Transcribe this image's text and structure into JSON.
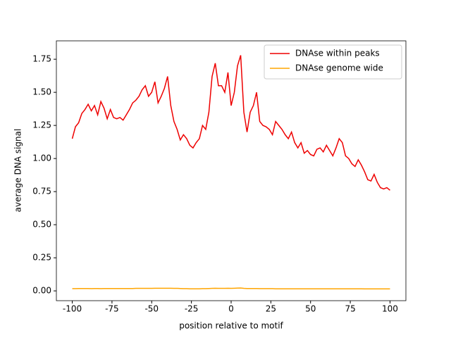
{
  "chart_data": {
    "type": "line",
    "xlabel": "position relative to motif",
    "ylabel": "average DNA signal",
    "x": [
      -100,
      -98,
      -96,
      -94,
      -92,
      -90,
      -88,
      -86,
      -84,
      -82,
      -80,
      -78,
      -76,
      -74,
      -72,
      -70,
      -68,
      -66,
      -64,
      -62,
      -60,
      -58,
      -56,
      -54,
      -52,
      -50,
      -48,
      -46,
      -44,
      -42,
      -40,
      -38,
      -36,
      -34,
      -32,
      -30,
      -28,
      -26,
      -24,
      -22,
      -20,
      -18,
      -16,
      -14,
      -12,
      -10,
      -8,
      -6,
      -4,
      -2,
      0,
      2,
      4,
      6,
      8,
      10,
      12,
      14,
      16,
      18,
      20,
      22,
      24,
      26,
      28,
      30,
      32,
      34,
      36,
      38,
      40,
      42,
      44,
      46,
      48,
      50,
      52,
      54,
      56,
      58,
      60,
      62,
      64,
      66,
      68,
      70,
      72,
      74,
      76,
      78,
      80,
      82,
      84,
      86,
      88,
      90,
      92,
      94,
      96,
      98,
      100
    ],
    "series": [
      {
        "name": "DNAse within peaks",
        "color": "#ee0000",
        "values": [
          1.15,
          1.24,
          1.27,
          1.34,
          1.37,
          1.41,
          1.36,
          1.4,
          1.33,
          1.43,
          1.38,
          1.3,
          1.37,
          1.31,
          1.3,
          1.31,
          1.29,
          1.33,
          1.37,
          1.42,
          1.44,
          1.47,
          1.52,
          1.55,
          1.47,
          1.5,
          1.58,
          1.42,
          1.47,
          1.53,
          1.62,
          1.4,
          1.28,
          1.22,
          1.14,
          1.18,
          1.15,
          1.1,
          1.08,
          1.12,
          1.15,
          1.25,
          1.22,
          1.35,
          1.62,
          1.72,
          1.55,
          1.55,
          1.5,
          1.65,
          1.4,
          1.5,
          1.7,
          1.78,
          1.35,
          1.2,
          1.35,
          1.4,
          1.5,
          1.28,
          1.25,
          1.24,
          1.22,
          1.18,
          1.28,
          1.25,
          1.22,
          1.18,
          1.15,
          1.2,
          1.12,
          1.08,
          1.12,
          1.04,
          1.06,
          1.03,
          1.02,
          1.07,
          1.08,
          1.05,
          1.1,
          1.06,
          1.02,
          1.08,
          1.15,
          1.12,
          1.02,
          1.0,
          0.96,
          0.94,
          0.99,
          0.95,
          0.9,
          0.84,
          0.83,
          0.88,
          0.82,
          0.78,
          0.77,
          0.78,
          0.76
        ]
      },
      {
        "name": "DNAse genome wide",
        "color": "#ffa500",
        "values": [
          0.017,
          0.017,
          0.018,
          0.018,
          0.018,
          0.018,
          0.017,
          0.018,
          0.018,
          0.017,
          0.018,
          0.018,
          0.018,
          0.018,
          0.018,
          0.018,
          0.018,
          0.018,
          0.018,
          0.018,
          0.019,
          0.019,
          0.019,
          0.019,
          0.019,
          0.019,
          0.02,
          0.02,
          0.02,
          0.02,
          0.02,
          0.02,
          0.019,
          0.019,
          0.018,
          0.017,
          0.017,
          0.016,
          0.016,
          0.016,
          0.016,
          0.017,
          0.017,
          0.018,
          0.019,
          0.02,
          0.019,
          0.019,
          0.019,
          0.02,
          0.019,
          0.02,
          0.021,
          0.022,
          0.019,
          0.018,
          0.018,
          0.018,
          0.018,
          0.017,
          0.017,
          0.017,
          0.017,
          0.017,
          0.016,
          0.016,
          0.016,
          0.016,
          0.016,
          0.016,
          0.016,
          0.016,
          0.016,
          0.016,
          0.016,
          0.016,
          0.016,
          0.016,
          0.016,
          0.016,
          0.016,
          0.016,
          0.016,
          0.016,
          0.016,
          0.016,
          0.016,
          0.016,
          0.016,
          0.016,
          0.016,
          0.016,
          0.015,
          0.015,
          0.015,
          0.015,
          0.015,
          0.015,
          0.015,
          0.015,
          0.015
        ]
      }
    ],
    "xlim": [
      -110,
      110
    ],
    "xticks": [
      -100,
      -75,
      -50,
      -25,
      0,
      25,
      50,
      75,
      100
    ],
    "ylim": [
      -0.074,
      1.889
    ],
    "yticks": [
      {
        "value": 0,
        "label": "0.00"
      },
      {
        "value": 0.25,
        "label": "0.25"
      },
      {
        "value": 0.5,
        "label": "0.50"
      },
      {
        "value": 0.75,
        "label": "0.75"
      },
      {
        "value": 1,
        "label": "1.00"
      },
      {
        "value": 1.25,
        "label": "1.25"
      },
      {
        "value": 1.5,
        "label": "1.50"
      },
      {
        "value": 1.75,
        "label": "1.75"
      }
    ],
    "grid": false,
    "legend": "upper right"
  }
}
